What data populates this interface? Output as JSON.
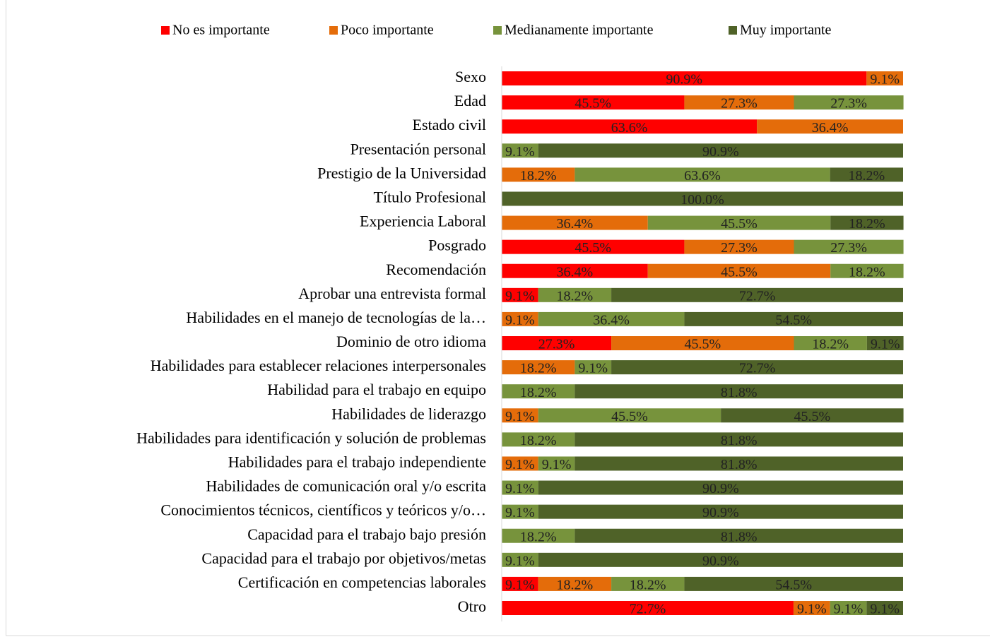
{
  "chart_data": {
    "type": "stacked_bar_horizontal",
    "categories": [
      "Sexo",
      "Edad",
      "Estado civil",
      "Presentación personal",
      "Prestigio de la Universidad",
      "Título Profesional",
      "Experiencia Laboral",
      "Posgrado",
      "Recomendación",
      "Aprobar una entrevista formal",
      "Habilidades en el manejo de tecnologías de la…",
      "Dominio de otro idioma",
      "Habilidades para establecer relaciones interpersonales",
      "Habilidad para el trabajo en equipo ",
      "Habilidades de liderazgo",
      "Habilidades para identificación y solución de problemas ",
      "Habilidades para el trabajo independiente",
      "Habilidades de comunicación oral y/o escrita",
      "Conocimientos técnicos, científicos y teóricos y/o…",
      "Capacidad para el trabajo bajo presión",
      "Capacidad para el trabajo por objetivos/metas",
      "Certificación en competencias laborales",
      "Otro"
    ],
    "series": [
      {
        "name": "No es importante",
        "color": "#ff0000",
        "values": [
          90.9,
          45.5,
          63.6,
          null,
          null,
          null,
          null,
          45.5,
          36.4,
          9.1,
          null,
          27.3,
          null,
          null,
          null,
          null,
          null,
          null,
          null,
          null,
          null,
          9.1,
          72.7
        ],
        "value_labels": [
          "90.9%",
          "45.5%",
          "63.6%",
          null,
          null,
          null,
          null,
          "45.5%",
          "36.4%",
          "9.1%",
          null,
          "27.3%",
          null,
          null,
          null,
          null,
          null,
          null,
          null,
          null,
          null,
          "9.1%",
          "72.7%"
        ]
      },
      {
        "name": "Poco importante",
        "color": "#e46c0a",
        "values": [
          9.1,
          27.3,
          36.4,
          null,
          18.2,
          null,
          36.4,
          27.3,
          45.5,
          null,
          9.1,
          45.5,
          18.2,
          null,
          9.1,
          null,
          9.1,
          null,
          null,
          null,
          null,
          18.2,
          9.1
        ],
        "value_labels": [
          "9.1%",
          "27.3%",
          "36.4%",
          null,
          "18.2%",
          null,
          "36.4%",
          "27.3%",
          "45.5%",
          null,
          "9.1%",
          "45.5%",
          "18.2%",
          null,
          "9.1%",
          null,
          "9.1%",
          null,
          null,
          null,
          null,
          "18.2%",
          "9.1%"
        ]
      },
      {
        "name": "Medianamente importante",
        "color": "#77933c",
        "values": [
          null,
          27.3,
          null,
          9.1,
          63.6,
          null,
          45.5,
          27.3,
          18.2,
          18.2,
          36.4,
          18.2,
          9.1,
          18.2,
          45.5,
          18.2,
          9.1,
          9.1,
          9.1,
          18.2,
          9.1,
          18.2,
          9.1
        ],
        "value_labels": [
          null,
          "27.3%",
          null,
          "9.1%",
          "63.6%",
          null,
          "45.5%",
          "27.3%",
          "18.2%",
          "18.2%",
          "36.4%",
          "18.2%",
          "9.1%",
          "18.2%",
          "45.5%",
          "18.2%",
          "9.1%",
          "9.1%",
          "9.1%",
          "18.2%",
          "9.1%",
          "18.2%",
          "9.1%"
        ]
      },
      {
        "name": "Muy importante",
        "color": "#4f6228",
        "values": [
          null,
          null,
          null,
          90.9,
          18.2,
          100.0,
          18.2,
          null,
          null,
          72.7,
          54.5,
          9.1,
          72.7,
          81.8,
          45.5,
          81.8,
          81.8,
          90.9,
          90.9,
          81.8,
          90.9,
          54.5,
          9.1
        ],
        "value_labels": [
          null,
          null,
          null,
          "90.9%",
          "18.2%",
          "100.0%",
          "18.2%",
          null,
          null,
          "72.7%",
          "54.5%",
          "9.1%",
          "72.7%",
          "81.8%",
          "45.5%",
          "81.8%",
          "81.8%",
          "90.9%",
          "90.9%",
          "81.8%",
          "90.9%",
          "54.5%",
          "9.1%"
        ]
      }
    ],
    "xlim": [
      0,
      100
    ],
    "legend": "top"
  }
}
